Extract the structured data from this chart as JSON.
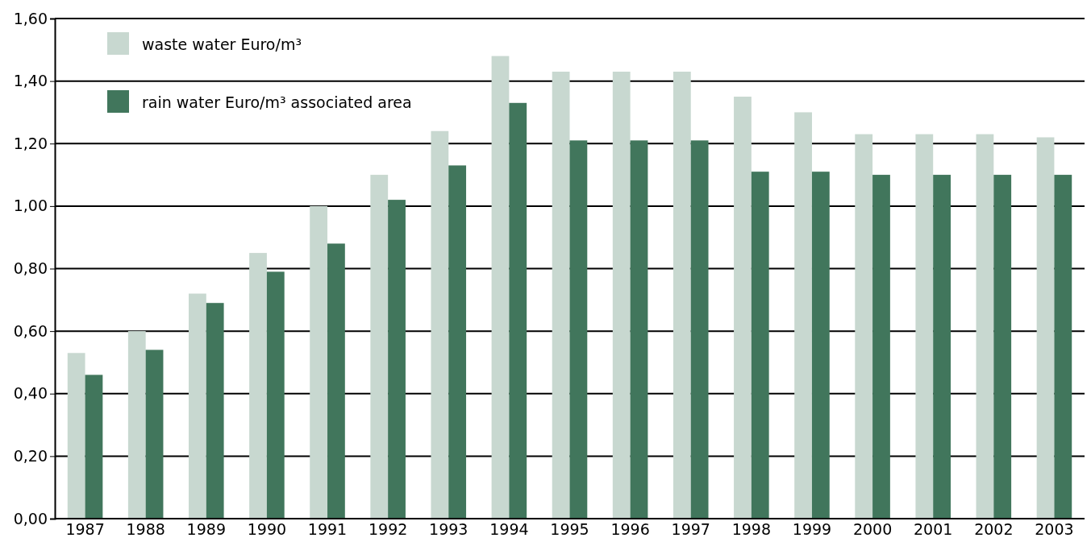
{
  "chart_data": {
    "type": "bar",
    "categories": [
      "1987",
      "1988",
      "1989",
      "1990",
      "1991",
      "1992",
      "1993",
      "1994",
      "1995",
      "1996",
      "1997",
      "1998",
      "1999",
      "2000",
      "2001",
      "2002",
      "2003"
    ],
    "series": [
      {
        "name": "waste water Euro/m³",
        "color": "#c8d8d0",
        "values": [
          0.53,
          0.6,
          0.72,
          0.85,
          1.0,
          1.1,
          1.24,
          1.48,
          1.43,
          1.43,
          1.43,
          1.35,
          1.3,
          1.23,
          1.23,
          1.23,
          1.22
        ]
      },
      {
        "name": "rain water Euro/m³ associated area",
        "color": "#41765c",
        "values": [
          0.46,
          0.54,
          0.69,
          0.79,
          0.88,
          1.02,
          1.13,
          1.33,
          1.21,
          1.21,
          1.21,
          1.11,
          1.11,
          1.1,
          1.1,
          1.1,
          1.1
        ]
      }
    ],
    "ylim": [
      0,
      1.6
    ],
    "yticks": [
      {
        "value": 0,
        "label": "0,00"
      },
      {
        "value": 0.2,
        "label": "0,20"
      },
      {
        "value": 0.4,
        "label": "0,40"
      },
      {
        "value": 0.6,
        "label": "0,60"
      },
      {
        "value": 0.8,
        "label": "0,80"
      },
      {
        "value": 1.0,
        "label": "1,00"
      },
      {
        "value": 1.2,
        "label": "1,20"
      },
      {
        "value": 1.4,
        "label": "1,40"
      },
      {
        "value": 1.6,
        "label": "1,60"
      }
    ],
    "grid": "y",
    "legend": "top left"
  }
}
